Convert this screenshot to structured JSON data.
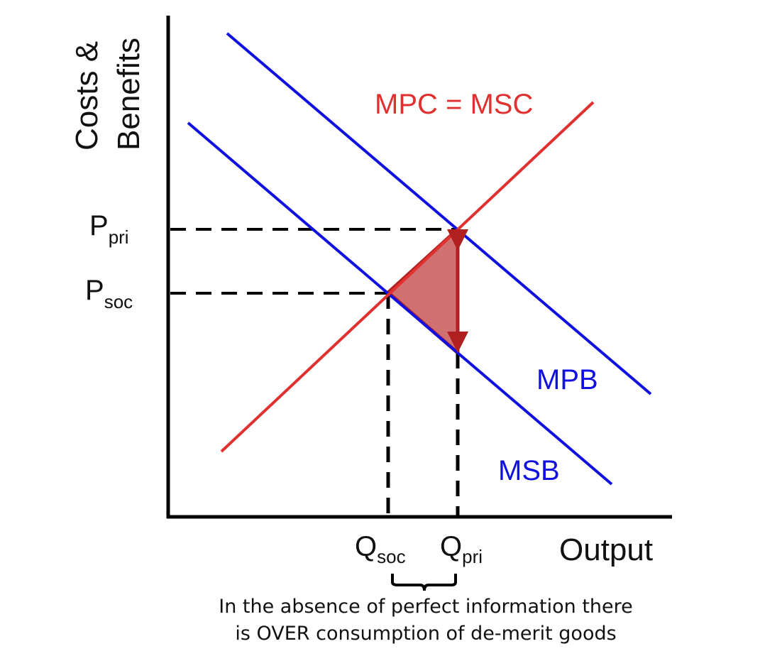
{
  "diagram": {
    "y_axis_label_line1": "Costs &",
    "y_axis_label_line2": "Benefits",
    "x_axis_label": "Output",
    "price_labels": [
      {
        "main": "P",
        "sub": "pri"
      },
      {
        "main": "P",
        "sub": "soc"
      }
    ],
    "quantity_labels": [
      {
        "main": "Q",
        "sub": "soc"
      },
      {
        "main": "Q",
        "sub": "pri"
      }
    ],
    "curves": {
      "supply": "MPC = MSC",
      "private_benefit": "MPB",
      "social_benefit": "MSB"
    },
    "caption_line1": "In the absence of perfect information there",
    "caption_line2": "is OVER consumption of de-merit goods"
  },
  "colors": {
    "supply_curve": "#e03030",
    "benefit_curves": "#1010e0",
    "welfare_loss_fill": "#d07070",
    "welfare_loss_stroke": "#b02020",
    "axes": "#000000"
  }
}
